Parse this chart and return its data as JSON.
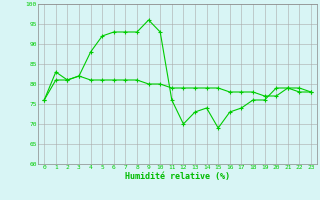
{
  "line1_x": [
    0,
    1,
    2,
    3,
    4,
    5,
    6,
    7,
    8,
    9,
    10,
    11,
    12,
    13,
    14,
    15,
    16,
    17,
    18,
    19,
    20,
    21,
    22,
    23
  ],
  "line1_y": [
    76,
    83,
    81,
    82,
    88,
    92,
    93,
    93,
    93,
    96,
    93,
    76,
    70,
    73,
    74,
    69,
    73,
    74,
    76,
    76,
    79,
    79,
    78,
    78
  ],
  "line2_x": [
    0,
    1,
    2,
    3,
    4,
    5,
    6,
    7,
    8,
    9,
    10,
    11,
    12,
    13,
    14,
    15,
    16,
    17,
    18,
    19,
    20,
    21,
    22,
    23
  ],
  "line2_y": [
    76,
    81,
    81,
    82,
    81,
    81,
    81,
    81,
    81,
    80,
    80,
    79,
    79,
    79,
    79,
    79,
    78,
    78,
    78,
    77,
    77,
    79,
    79,
    78
  ],
  "line_color": "#00cc00",
  "marker": "+",
  "marker_size": 3,
  "background_color": "#d8f5f5",
  "grid_color": "#aaaaaa",
  "xlabel": "Humidité relative (%)",
  "xlabel_color": "#00bb00",
  "xlim": [
    -0.5,
    23.5
  ],
  "ylim": [
    60,
    100
  ],
  "yticks": [
    60,
    65,
    70,
    75,
    80,
    85,
    90,
    95,
    100
  ],
  "xticks": [
    0,
    1,
    2,
    3,
    4,
    5,
    6,
    7,
    8,
    9,
    10,
    11,
    12,
    13,
    14,
    15,
    16,
    17,
    18,
    19,
    20,
    21,
    22,
    23
  ]
}
